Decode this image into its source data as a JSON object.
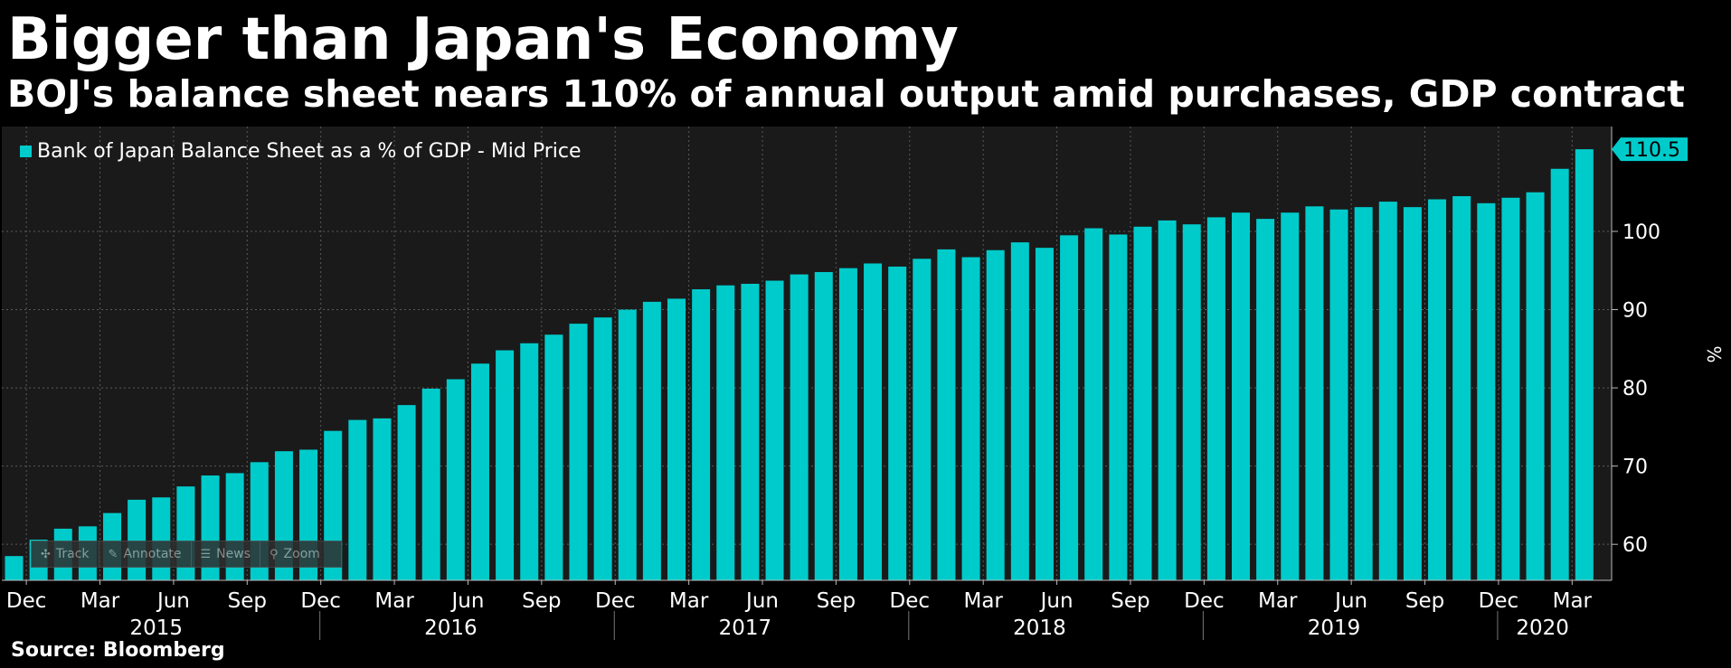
{
  "title": "Bigger than Japan's Economy",
  "subtitle": "BOJ's balance sheet nears 110% of annual output amid purchases, GDP contract",
  "source": "Source: Bloomberg",
  "toolbar": [
    {
      "label": "Track",
      "icon": "crosshair-icon"
    },
    {
      "label": "Annotate",
      "icon": "pencil-icon"
    },
    {
      "label": "News",
      "icon": "news-icon"
    },
    {
      "label": "Zoom",
      "icon": "magnifier-icon"
    }
  ],
  "colors": {
    "bar": "#00CBCB",
    "plot_bg": "#1a1a1a",
    "grid": "#5a5a5a",
    "text": "#ffffff"
  },
  "chart_data": {
    "type": "bar",
    "series": [
      {
        "name": "Bank of Japan Balance Sheet as a % of GDP - Mid Price",
        "values": [
          58.5,
          60.6,
          62.0,
          62.3,
          64.0,
          65.7,
          66.0,
          67.4,
          68.8,
          69.1,
          70.5,
          71.9,
          72.1,
          74.5,
          75.9,
          76.1,
          77.8,
          79.9,
          81.1,
          83.1,
          84.8,
          85.7,
          86.8,
          88.2,
          89.0,
          90.0,
          91.0,
          91.4,
          92.6,
          93.1,
          93.3,
          93.7,
          94.5,
          94.8,
          95.3,
          95.9,
          95.5,
          96.5,
          97.7,
          96.7,
          97.6,
          98.6,
          97.9,
          99.5,
          100.4,
          99.6,
          100.6,
          101.4,
          100.9,
          101.8,
          102.4,
          101.6,
          102.4,
          103.2,
          102.8,
          103.1,
          103.8,
          103.1,
          104.1,
          104.5,
          103.6,
          104.3,
          105.0,
          108.0,
          110.5
        ]
      }
    ],
    "month_ticks": [
      {
        "label": "Dec",
        "index": 1
      },
      {
        "label": "Mar",
        "index": 4
      },
      {
        "label": "Jun",
        "index": 7
      },
      {
        "label": "Sep",
        "index": 10
      },
      {
        "label": "Dec",
        "index": 13
      },
      {
        "label": "Mar",
        "index": 16
      },
      {
        "label": "Jun",
        "index": 19
      },
      {
        "label": "Sep",
        "index": 22
      },
      {
        "label": "Dec",
        "index": 25
      },
      {
        "label": "Mar",
        "index": 28
      },
      {
        "label": "Jun",
        "index": 31
      },
      {
        "label": "Sep",
        "index": 34
      },
      {
        "label": "Dec",
        "index": 37
      },
      {
        "label": "Mar",
        "index": 40
      },
      {
        "label": "Jun",
        "index": 43
      },
      {
        "label": "Sep",
        "index": 46
      },
      {
        "label": "Dec",
        "index": 49
      },
      {
        "label": "Mar",
        "index": 52
      },
      {
        "label": "Jun",
        "index": 55
      },
      {
        "label": "Sep",
        "index": 58
      },
      {
        "label": "Dec",
        "index": 61
      },
      {
        "label": "Mar",
        "index": 64
      }
    ],
    "year_labels": [
      {
        "label": "2015",
        "from": 0,
        "to": 12
      },
      {
        "label": "2016",
        "from": 12,
        "to": 24
      },
      {
        "label": "2017",
        "from": 24,
        "to": 36
      },
      {
        "label": "2018",
        "from": 36,
        "to": 48
      },
      {
        "label": "2019",
        "from": 48,
        "to": 60
      },
      {
        "label": "2020",
        "from": 60,
        "to": 65
      }
    ],
    "year_separators": [
      13,
      25,
      37,
      49,
      61
    ],
    "y_ticks": [
      60,
      70,
      80,
      90,
      100
    ],
    "ylim": [
      55.4,
      113.4
    ],
    "ylabel": "%",
    "last_value_label": "110.5",
    "grid": true,
    "legend_position": "top-left"
  }
}
